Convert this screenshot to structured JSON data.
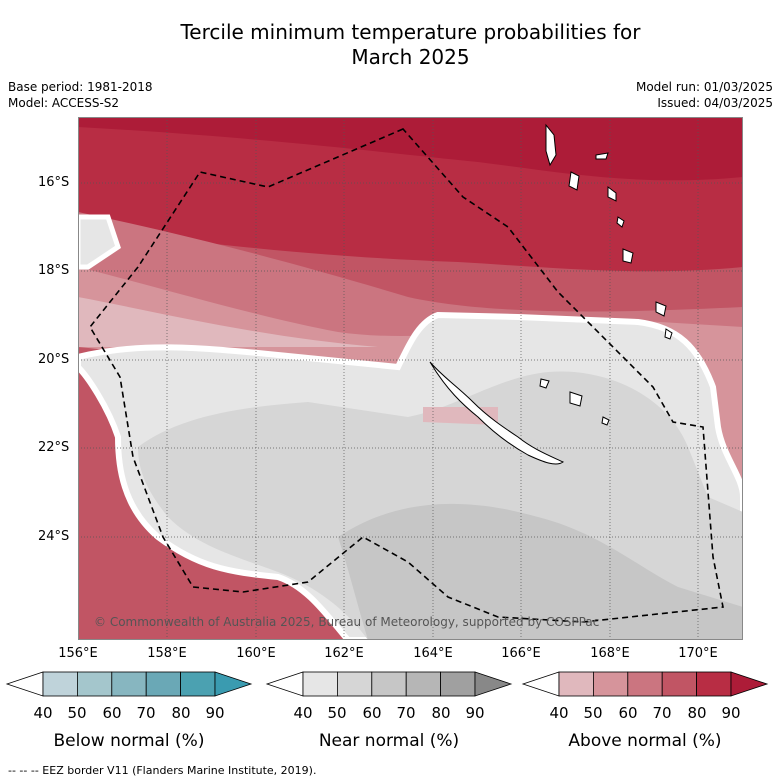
{
  "title_line1": "Tercile minimum temperature probabilities for",
  "title_line2": "March 2025",
  "base_period": "Base period: 1981-2018",
  "model": "Model: ACCESS-S2",
  "model_run": "Model run: 01/03/2025",
  "issued": "Issued: 04/03/2025",
  "copyright": "© Commonwealth of Australia 2025, Bureau of Meteorology, supported by COSPPac",
  "lat_labels": [
    "16°S",
    "18°S",
    "20°S",
    "22°S",
    "24°S"
  ],
  "lon_labels": [
    "156°E",
    "158°E",
    "160°E",
    "162°E",
    "164°E",
    "166°E",
    "168°E",
    "170°E"
  ],
  "colorbars": [
    {
      "title": "Below normal (%)",
      "ticks": [
        "40",
        "50",
        "60",
        "70",
        "80",
        "90"
      ],
      "colors": [
        "#ffffff",
        "#bfd3da",
        "#a4c6cc",
        "#87b6c0",
        "#6aa8b6",
        "#4ba1b1",
        "#3a9bb0"
      ]
    },
    {
      "title": "Near normal (%)",
      "ticks": [
        "40",
        "50",
        "60",
        "70",
        "80",
        "90"
      ],
      "colors": [
        "#ffffff",
        "#e6e6e6",
        "#d6d6d6",
        "#c6c6c6",
        "#b6b6b6",
        "#a0a0a0",
        "#888888"
      ]
    },
    {
      "title": "Above normal (%)",
      "ticks": [
        "40",
        "50",
        "60",
        "70",
        "80",
        "90"
      ],
      "colors": [
        "#ffffff",
        "#e0b8bd",
        "#d6949b",
        "#cb7580",
        "#c15564",
        "#b82d44",
        "#ad1c38"
      ]
    }
  ],
  "footnote": "-- -- -- EEZ border V11 (Flanders Marine Institute, 2019)."
}
